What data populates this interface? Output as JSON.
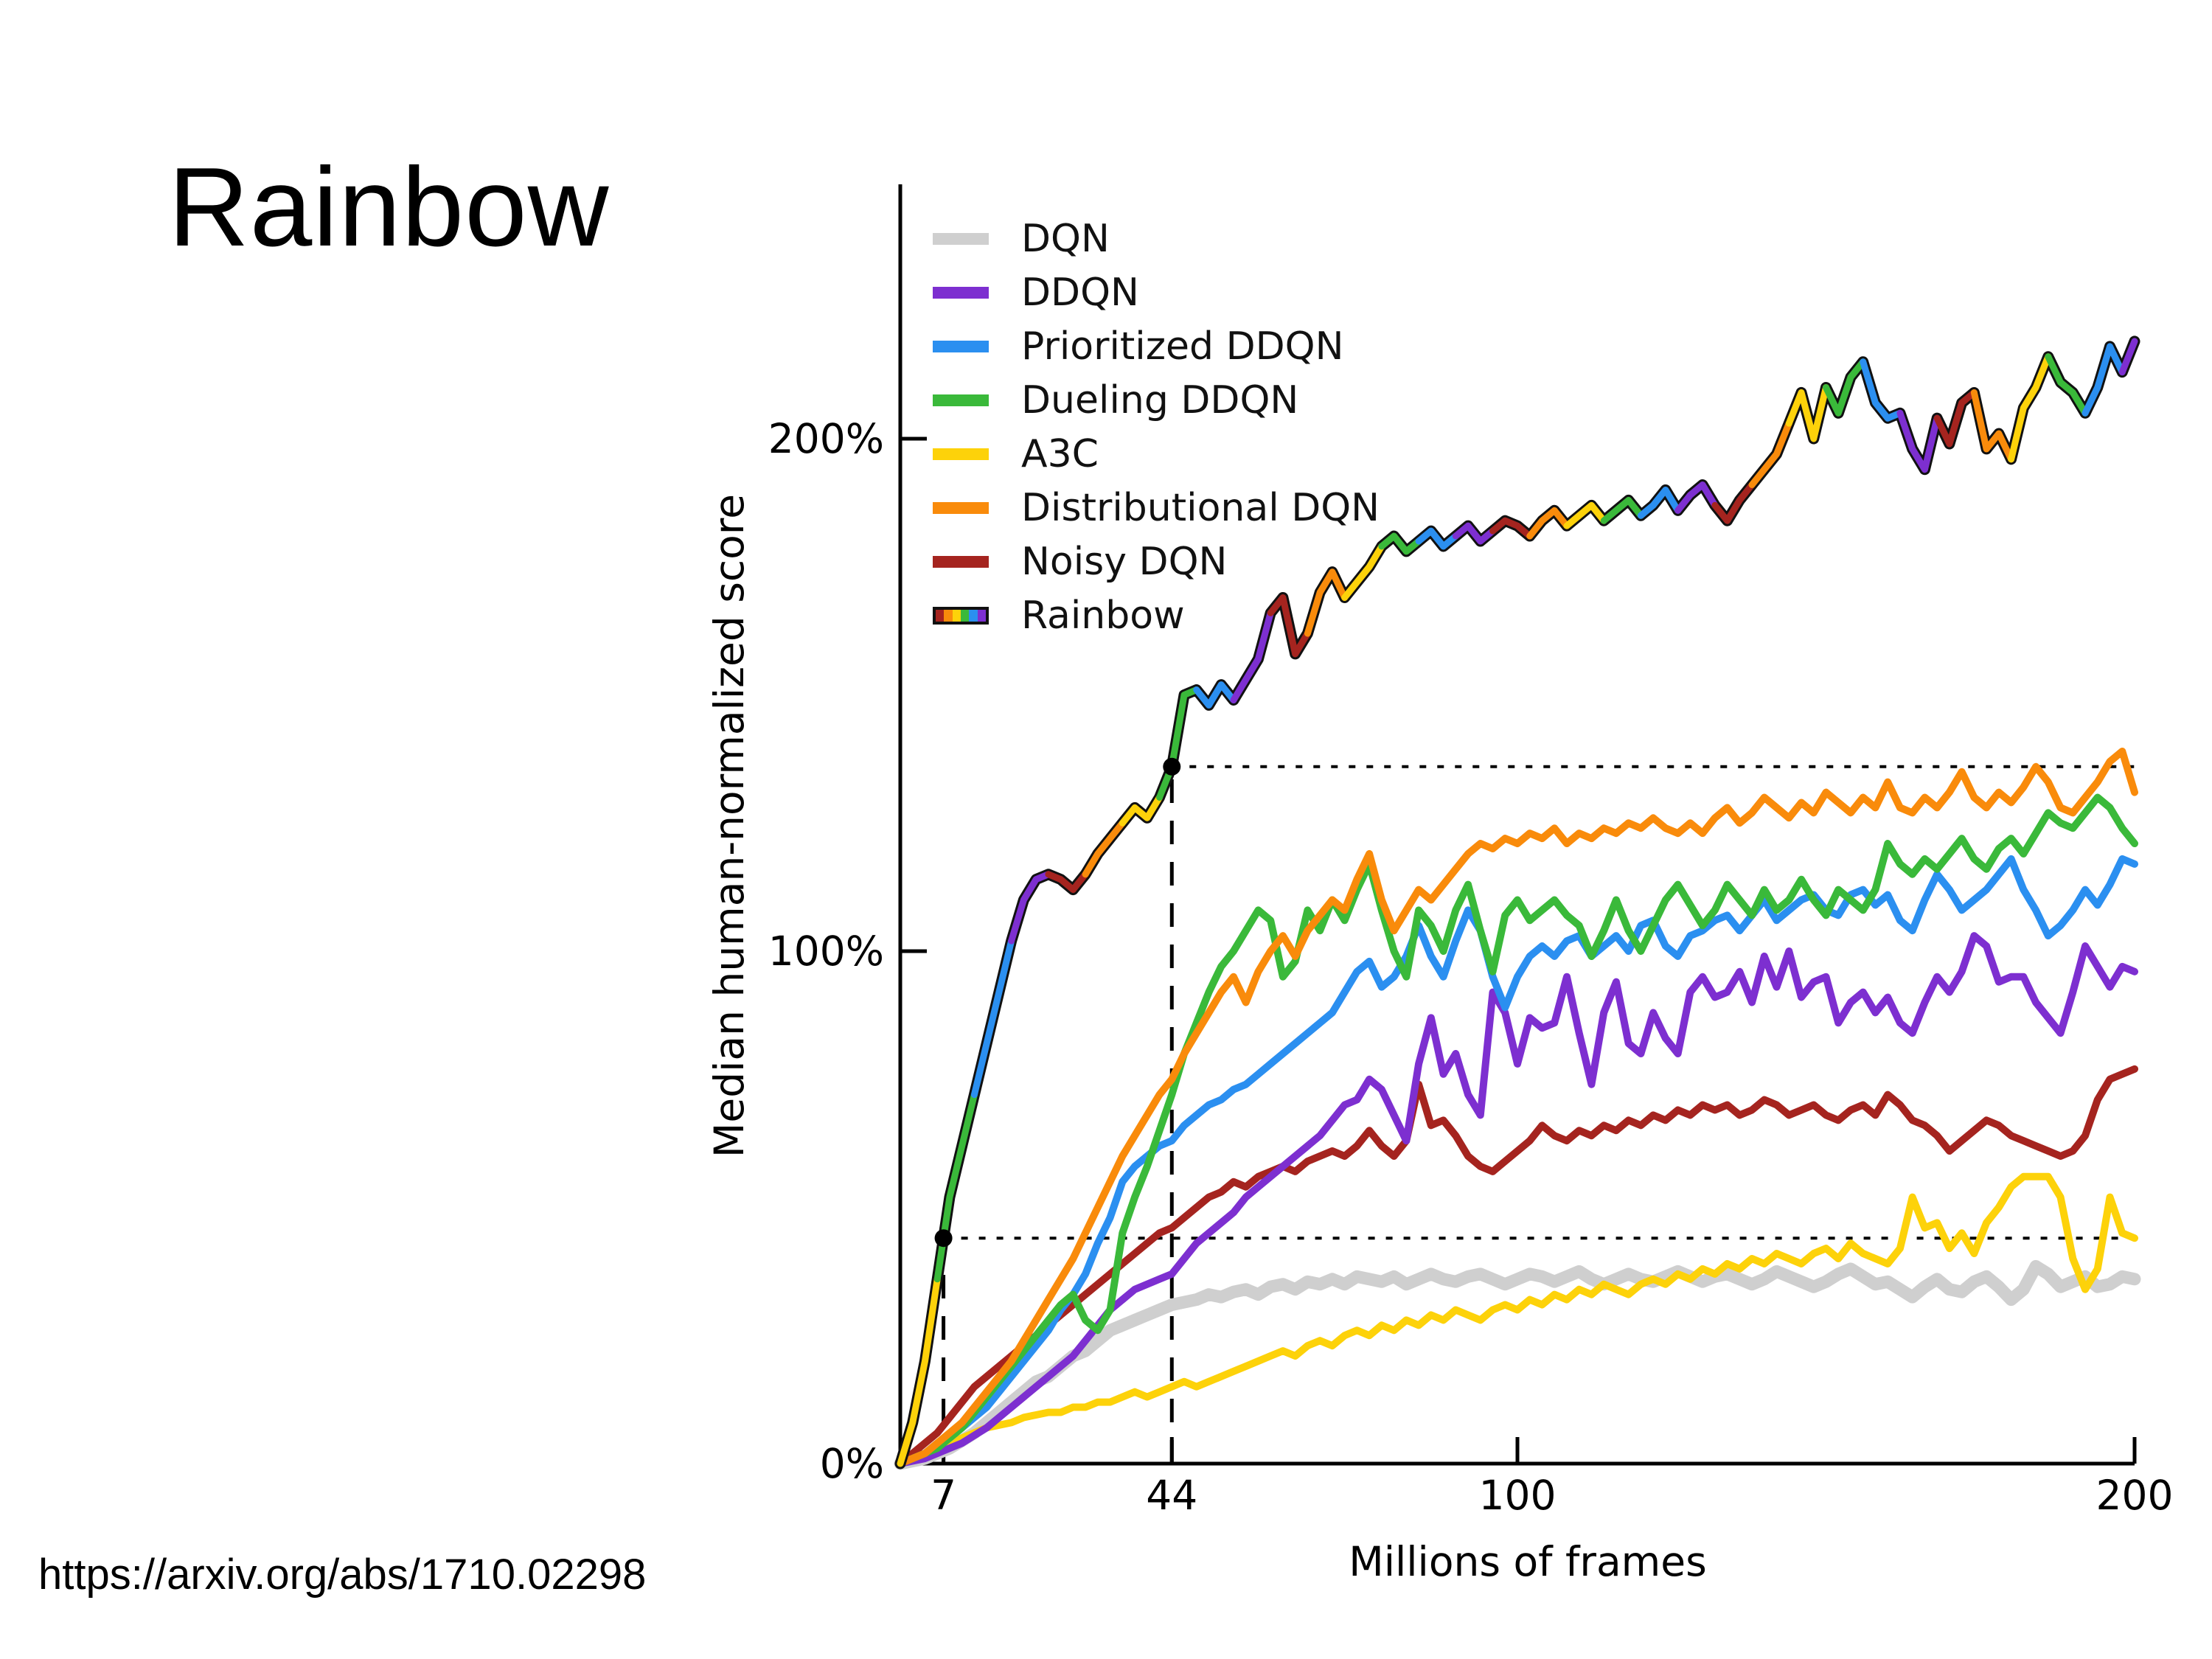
{
  "title": "Rainbow",
  "source_url": "https://arxiv.org/abs/1710.02298",
  "chart_data": {
    "type": "line",
    "xlabel": "Millions of frames",
    "ylabel": "Median human-normalized score",
    "xlim": [
      0,
      200
    ],
    "ylim": [
      0,
      250
    ],
    "x_step": 2,
    "grid": false,
    "legend_position": "upper-left",
    "x_ticks": [
      "7",
      "44",
      "100",
      "200"
    ],
    "x_tick_values": [
      7,
      44,
      100,
      200
    ],
    "y_ticks": [
      "0%",
      "100%",
      "200%"
    ],
    "y_tick_values": [
      0,
      100,
      200
    ],
    "annotations": {
      "dots": [
        {
          "x": 7,
          "y": 44
        },
        {
          "x": 44,
          "y": 136
        }
      ],
      "h_dotted_lines": [
        {
          "y": 44,
          "x1": 7,
          "x2": 200
        },
        {
          "y": 136,
          "x1": 44,
          "x2": 200
        }
      ],
      "v_dashed_lines": [
        {
          "x": 7,
          "y1": 0,
          "y2": 44
        },
        {
          "x": 44,
          "y1": 0,
          "y2": 136
        }
      ]
    },
    "rainbow_palette": [
      "#a5241f",
      "#f98b0b",
      "#fdd20a",
      "#3ab93a",
      "#2b8ff0",
      "#7d2fd0"
    ],
    "series": [
      {
        "name": "DQN",
        "color": "#cfcfcf",
        "width": 17,
        "values": [
          0,
          0.5,
          1,
          2,
          3,
          4.5,
          6,
          8,
          10,
          12,
          14,
          16,
          17,
          19,
          21,
          22,
          24,
          26,
          27,
          28,
          29,
          30,
          31,
          31.5,
          32,
          33,
          32.5,
          33.5,
          34,
          33,
          34.5,
          35,
          34,
          35.5,
          35,
          36,
          35,
          36.5,
          36,
          35.5,
          36.5,
          35,
          36,
          37,
          36,
          35.5,
          36.5,
          37,
          36,
          35,
          36,
          37,
          36.5,
          35.5,
          36.5,
          37.5,
          36,
          35,
          36,
          37,
          36,
          35.5,
          36.5,
          37.5,
          36.5,
          35.5,
          36.5,
          37,
          36,
          35,
          36,
          37.5,
          36.5,
          35.5,
          34.5,
          35.5,
          37,
          38,
          36.5,
          35,
          35.5,
          34,
          32.5,
          34.5,
          36,
          34,
          33.5,
          35.5,
          36.5,
          34.5,
          32,
          34,
          38.5,
          37,
          34.5,
          35.5,
          36.5,
          34.5,
          35,
          36.5,
          36
        ]
      },
      {
        "name": "DDQN",
        "color": "#7d2fd0",
        "width": 10,
        "values": [
          0,
          0.5,
          1,
          2,
          3,
          4,
          5.5,
          7,
          9,
          11,
          13,
          15,
          17,
          19,
          21,
          24,
          27,
          30,
          32,
          34,
          35,
          36,
          37,
          40,
          43,
          45,
          47,
          49,
          52,
          54,
          56,
          58,
          60,
          62,
          64,
          67,
          70,
          71,
          75,
          73,
          68,
          63,
          78,
          87,
          76,
          80,
          72,
          68,
          92,
          88,
          78,
          87,
          85,
          86,
          95,
          84,
          74,
          88,
          94,
          82,
          80,
          88,
          83,
          80,
          92,
          95,
          91,
          92,
          96,
          90,
          99,
          93,
          100,
          91,
          94,
          95,
          86,
          90,
          92,
          88,
          91,
          86,
          84,
          90,
          95,
          92,
          96,
          103,
          101,
          94,
          95,
          95,
          90,
          87,
          84,
          92,
          101,
          97,
          93,
          97,
          96
        ]
      },
      {
        "name": "Prioritized DDQN",
        "color": "#2b8ff0",
        "width": 10,
        "values": [
          0,
          1,
          2,
          4,
          5,
          7,
          9,
          11,
          14,
          17,
          20,
          23,
          26,
          30,
          33,
          37,
          43,
          48,
          55,
          58,
          60,
          62,
          63,
          66,
          68,
          70,
          71,
          73,
          74,
          76,
          78,
          80,
          82,
          84,
          86,
          88,
          92,
          96,
          98,
          93,
          95,
          99,
          105,
          99,
          95,
          102,
          108,
          104,
          95,
          89,
          95,
          99,
          101,
          99,
          102,
          103,
          99,
          101,
          103,
          100,
          105,
          106,
          101,
          99,
          103,
          104,
          106,
          107,
          104,
          107,
          110,
          106,
          108,
          110,
          111,
          108,
          107,
          111,
          112,
          109,
          111,
          106,
          104,
          110,
          115,
          112,
          108,
          110,
          112,
          115,
          118,
          112,
          108,
          103,
          105,
          108,
          112,
          109,
          113,
          118,
          117
        ]
      },
      {
        "name": "Dueling DDQN",
        "color": "#3ab93a",
        "width": 10,
        "values": [
          0,
          1,
          2,
          3,
          5,
          7,
          10,
          13,
          16,
          19,
          22,
          25,
          28,
          31,
          33,
          28,
          26,
          30,
          45,
          52,
          58,
          65,
          72,
          80,
          86,
          92,
          97,
          100,
          104,
          108,
          106,
          95,
          98,
          108,
          104,
          110,
          106,
          112,
          117,
          108,
          100,
          95,
          108,
          105,
          100,
          108,
          113,
          104,
          96,
          107,
          110,
          106,
          108,
          110,
          107,
          105,
          99,
          104,
          110,
          104,
          100,
          105,
          110,
          113,
          109,
          105,
          108,
          113,
          110,
          107,
          112,
          108,
          110,
          114,
          110,
          107,
          112,
          110,
          108,
          112,
          121,
          117,
          115,
          118,
          116,
          119,
          122,
          118,
          116,
          120,
          122,
          119,
          123,
          127,
          125,
          124,
          127,
          130,
          128,
          124,
          121
        ]
      },
      {
        "name": "A3C",
        "color": "#fdd20a",
        "width": 10,
        "values": [
          0,
          1,
          2,
          3,
          4,
          5,
          6,
          7,
          7.5,
          8,
          9,
          9.5,
          10,
          10,
          11,
          11,
          12,
          12,
          13,
          14,
          13,
          14,
          15,
          16,
          15,
          16,
          17,
          18,
          19,
          20,
          21,
          22,
          21,
          23,
          24,
          23,
          25,
          26,
          25,
          27,
          26,
          28,
          27,
          29,
          28,
          30,
          29,
          28,
          30,
          31,
          30,
          32,
          31,
          33,
          32,
          34,
          33,
          35,
          34,
          33,
          35,
          36,
          35,
          37,
          36,
          38,
          37,
          39,
          38,
          40,
          39,
          41,
          40,
          39,
          41,
          42,
          40,
          43,
          41,
          40,
          39,
          42,
          52,
          46,
          47,
          42,
          45,
          41,
          47,
          50,
          54,
          56,
          56,
          56,
          52,
          40,
          34,
          38,
          52,
          45,
          44
        ]
      },
      {
        "name": "Distributional DQN",
        "color": "#f98b0b",
        "width": 10,
        "values": [
          0,
          1,
          2,
          4,
          6,
          8,
          11,
          14,
          17,
          20,
          24,
          28,
          32,
          36,
          40,
          45,
          50,
          55,
          60,
          64,
          68,
          72,
          75,
          80,
          84,
          88,
          92,
          95,
          90,
          96,
          100,
          103,
          99,
          104,
          107,
          110,
          108,
          114,
          119,
          110,
          104,
          108,
          112,
          110,
          113,
          116,
          119,
          121,
          120,
          122,
          121,
          123,
          122,
          124,
          121,
          123,
          122,
          124,
          123,
          125,
          124,
          126,
          124,
          123,
          125,
          123,
          126,
          128,
          125,
          127,
          130,
          128,
          126,
          129,
          127,
          131,
          129,
          127,
          130,
          128,
          133,
          128,
          127,
          130,
          128,
          131,
          135,
          130,
          128,
          131,
          129,
          132,
          136,
          133,
          128,
          127,
          130,
          133,
          137,
          139,
          131
        ]
      },
      {
        "name": "Noisy DQN",
        "color": "#a5241f",
        "width": 10,
        "values": [
          0,
          2,
          4,
          6,
          9,
          12,
          15,
          17,
          19,
          21,
          23,
          25,
          27,
          29,
          31,
          33,
          35,
          37,
          39,
          41,
          43,
          45,
          46,
          48,
          50,
          52,
          53,
          55,
          54,
          56,
          57,
          58,
          57,
          59,
          60,
          61,
          60,
          62,
          65,
          62,
          60,
          63,
          74,
          66,
          67,
          64,
          60,
          58,
          57,
          59,
          61,
          63,
          66,
          64,
          63,
          65,
          64,
          66,
          65,
          67,
          66,
          68,
          67,
          69,
          68,
          70,
          69,
          70,
          68,
          69,
          71,
          70,
          68,
          69,
          70,
          68,
          67,
          69,
          70,
          68,
          72,
          70,
          67,
          66,
          64,
          61,
          63,
          65,
          67,
          66,
          64,
          63,
          62,
          61,
          60,
          61,
          64,
          71,
          75,
          76,
          77
        ]
      },
      {
        "name": "Rainbow",
        "color": "rainbow",
        "outline": "#111",
        "width": 9,
        "values": [
          0,
          8,
          20,
          36,
          52,
          62,
          72,
          82,
          92,
          102,
          110,
          114,
          115,
          114,
          112,
          115,
          119,
          122,
          125,
          128,
          126,
          130,
          136,
          150,
          151,
          148,
          152,
          149,
          153,
          157,
          166,
          169,
          158,
          162,
          170,
          174,
          169,
          172,
          175,
          179,
          181,
          178,
          180,
          182,
          179,
          181,
          183,
          180,
          182,
          184,
          183,
          181,
          184,
          186,
          183,
          185,
          187,
          184,
          186,
          188,
          185,
          187,
          190,
          186,
          189,
          191,
          187,
          184,
          188,
          191,
          194,
          197,
          203,
          209,
          200,
          210,
          205,
          212,
          215,
          207,
          204,
          205,
          198,
          194,
          204,
          199,
          207,
          209,
          198,
          201,
          196,
          206,
          210,
          216,
          211,
          209,
          205,
          210,
          218,
          213,
          219
        ]
      }
    ]
  },
  "legend": {
    "items": [
      "DQN",
      "DDQN",
      "Prioritized DDQN",
      "Dueling DDQN",
      "A3C",
      "Distributional DQN",
      "Noisy DQN",
      "Rainbow"
    ]
  }
}
